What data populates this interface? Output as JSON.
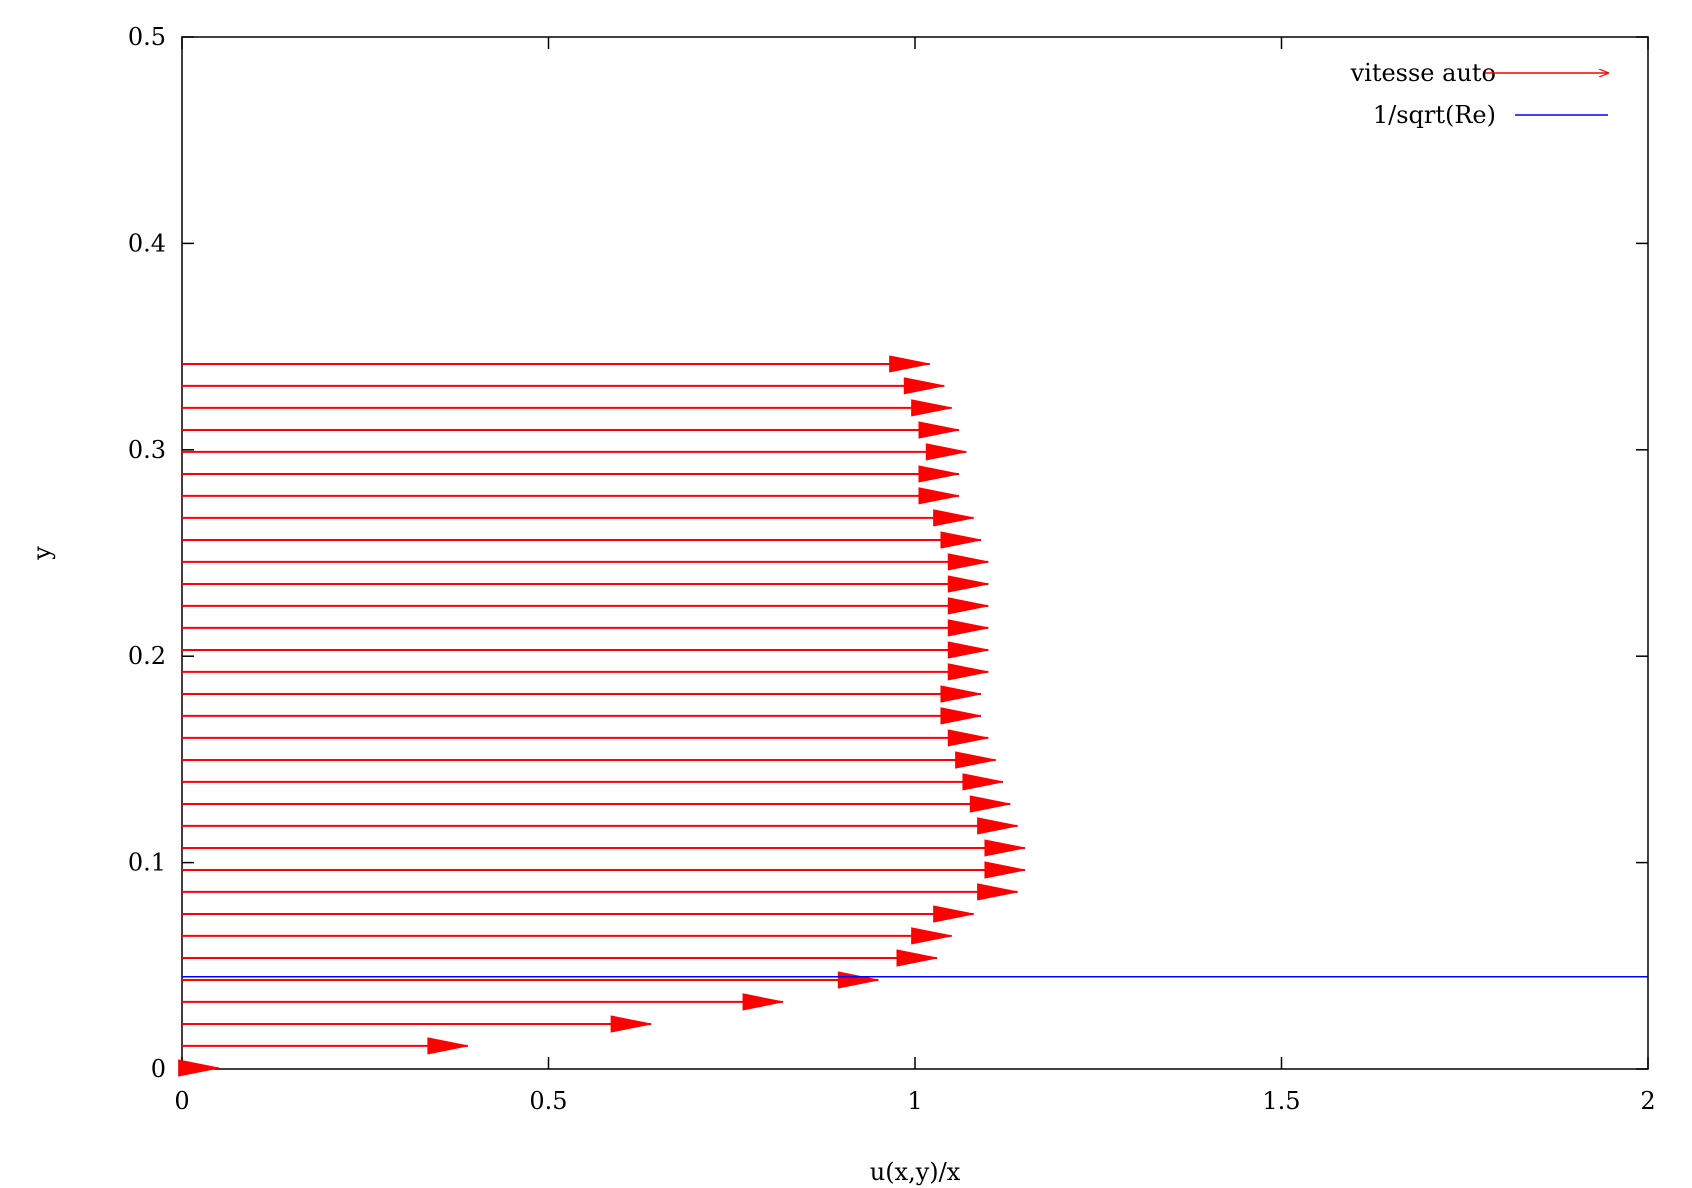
{
  "chart_data": {
    "type": "vector-field",
    "title": "",
    "xlabel": "u(x,y)/x",
    "ylabel": "y",
    "xlim": [
      0,
      2
    ],
    "ylim": [
      0,
      0.5
    ],
    "x_ticks": [
      "0",
      "0.5",
      "1",
      "1.5",
      "2"
    ],
    "y_ticks": [
      "0",
      "0.1",
      "0.2",
      "0.3",
      "0.4",
      "0.5"
    ],
    "grid": false,
    "legend_position": "top-right",
    "series": [
      {
        "name": "vitesse auto",
        "kind": "arrows",
        "color": "#ff0000",
        "tails_u": [
          0.0,
          0.0,
          0.0,
          0.0,
          0.0,
          0.0,
          0.0,
          0.0,
          0.0,
          0.0,
          0.0,
          0.0,
          0.0,
          0.0,
          0.0,
          0.0,
          0.0,
          0.0,
          0.0,
          0.0,
          0.0,
          0.0,
          0.0,
          0.0,
          0.0,
          0.0,
          0.0,
          0.0,
          0.0,
          0.0,
          0.0,
          0.0,
          0.0
        ],
        "y": [
          0.0005,
          0.0112,
          0.0218,
          0.0325,
          0.0431,
          0.0538,
          0.0645,
          0.0751,
          0.0858,
          0.0964,
          0.1071,
          0.1178,
          0.1284,
          0.1391,
          0.1497,
          0.1604,
          0.1711,
          0.1817,
          0.1924,
          0.203,
          0.2137,
          0.2244,
          0.235,
          0.2457,
          0.2563,
          0.267,
          0.2777,
          0.2883,
          0.299,
          0.3096,
          0.3203,
          0.331,
          0.3416
        ],
        "heads_u": [
          0.05,
          0.39,
          0.64,
          0.82,
          0.95,
          1.03,
          1.05,
          1.08,
          1.14,
          1.15,
          1.15,
          1.14,
          1.13,
          1.12,
          1.11,
          1.1,
          1.09,
          1.09,
          1.1,
          1.1,
          1.1,
          1.1,
          1.1,
          1.1,
          1.09,
          1.08,
          1.06,
          1.06,
          1.07,
          1.06,
          1.05,
          1.04,
          1.02
        ]
      },
      {
        "name": "1/sqrt(Re)",
        "kind": "line",
        "color": "#0000ff",
        "y": 0.0447
      }
    ]
  }
}
